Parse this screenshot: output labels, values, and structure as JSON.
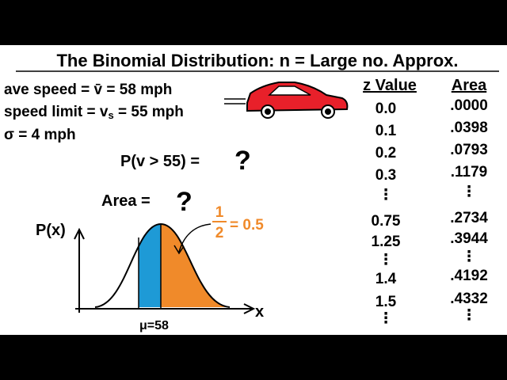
{
  "title": "The Binomial Distribution: n = Large no. Approx.",
  "given": {
    "ave_speed": {
      "label": "ave speed = ",
      "symbol": "v̄",
      "rest": " = 58 mph"
    },
    "speed_limit": {
      "label": "speed limit = ",
      "symbol": "v",
      "subscript": "s",
      "rest": " = 55 mph"
    },
    "sigma": "σ = 4 mph"
  },
  "question": {
    "text": "P(v > 55) = ",
    "mark": "?"
  },
  "area_question": {
    "text": "Area = ",
    "mark": "?"
  },
  "graph": {
    "y_label": "P(x)",
    "x_label": "x",
    "mean_label": "μ=58",
    "half": {
      "numerator": "1",
      "denominator": "2",
      "value": "= 0.5"
    }
  },
  "table": {
    "headers": [
      "z Value",
      "Area"
    ],
    "rows": [
      [
        "0.0",
        ".0000"
      ],
      [
        "0.1",
        ".0398"
      ],
      [
        "0.2",
        ".0793"
      ],
      [
        "0.3",
        ".1179"
      ],
      [
        "⋮",
        "⋮"
      ],
      [
        "0.75",
        ".2734"
      ],
      [
        "1.25",
        ".3944"
      ],
      [
        "⋮",
        "⋮"
      ],
      [
        "1.4",
        ".4192"
      ],
      [
        "1.5",
        ".4332"
      ],
      [
        "⋮",
        "⋮"
      ]
    ]
  }
}
